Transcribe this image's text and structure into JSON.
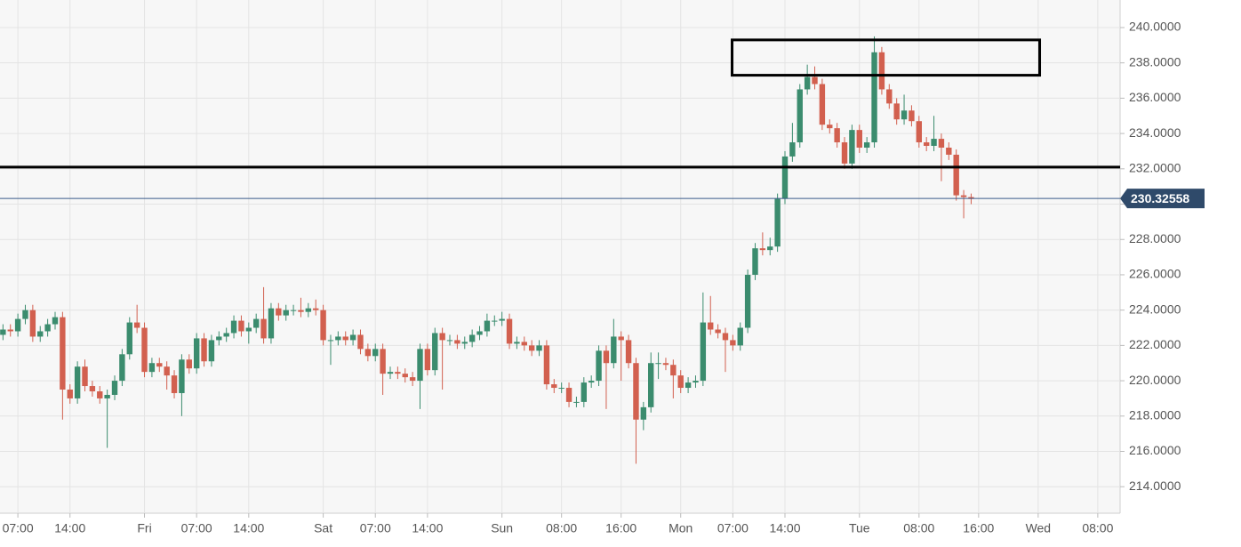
{
  "chart_data": {
    "type": "candlestick",
    "up_color": "#3b8c6e",
    "down_color": "#d2604f",
    "grid": true,
    "xlim": [
      4.6,
      155
    ],
    "ylim": [
      212.5,
      241.56
    ],
    "xticks": [
      {
        "value": 7,
        "label": "07:00"
      },
      {
        "value": 14,
        "label": "14:00"
      },
      {
        "value": 24,
        "label": "Fri"
      },
      {
        "value": 31,
        "label": "07:00"
      },
      {
        "value": 38,
        "label": "14:00"
      },
      {
        "value": 48,
        "label": "Sat"
      },
      {
        "value": 55,
        "label": "07:00"
      },
      {
        "value": 62,
        "label": "14:00"
      },
      {
        "value": 72,
        "label": "Sun"
      },
      {
        "value": 80,
        "label": "08:00"
      },
      {
        "value": 88,
        "label": "16:00"
      },
      {
        "value": 96,
        "label": "Mon"
      },
      {
        "value": 103,
        "label": "07:00"
      },
      {
        "value": 110,
        "label": "14:00"
      },
      {
        "value": 120,
        "label": "Tue"
      },
      {
        "value": 128,
        "label": "08:00"
      },
      {
        "value": 136,
        "label": "16:00"
      },
      {
        "value": 144,
        "label": "Wed"
      },
      {
        "value": 152,
        "label": "08:00"
      }
    ],
    "yticks": [
      {
        "value": 214,
        "label": "214.0000"
      },
      {
        "value": 216,
        "label": "216.0000"
      },
      {
        "value": 218,
        "label": "218.0000"
      },
      {
        "value": 220,
        "label": "220.0000"
      },
      {
        "value": 222,
        "label": "222.0000"
      },
      {
        "value": 224,
        "label": "224.0000"
      },
      {
        "value": 226,
        "label": "226.0000"
      },
      {
        "value": 228,
        "label": "228.0000"
      },
      {
        "value": 230,
        "label": "230.0000"
      },
      {
        "value": 232,
        "label": "232.0000"
      },
      {
        "value": 234,
        "label": "234.0000"
      },
      {
        "value": 236,
        "label": "236.0000"
      },
      {
        "value": 238,
        "label": "238.0000"
      },
      {
        "value": 240,
        "label": "240.0000"
      }
    ],
    "current_price": 230.32558,
    "hline": 232.1,
    "box": {
      "x": [
        102.9,
        144.2
      ],
      "y": [
        237.3,
        239.3
      ]
    },
    "x": [
      5,
      6,
      7,
      8,
      9,
      10,
      11,
      12,
      13,
      14,
      15,
      16,
      17,
      18,
      19,
      20,
      21,
      22,
      23,
      24,
      25,
      26,
      27,
      28,
      29,
      30,
      31,
      32,
      33,
      34,
      35,
      36,
      37,
      38,
      39,
      40,
      41,
      42,
      43,
      44,
      45,
      46,
      47,
      48,
      49,
      50,
      51,
      52,
      53,
      54,
      55,
      56,
      57,
      58,
      59,
      60,
      61,
      62,
      63,
      64,
      65,
      66,
      67,
      68,
      69,
      70,
      71,
      72,
      73,
      74,
      75,
      76,
      77,
      78,
      79,
      80,
      81,
      82,
      83,
      84,
      85,
      86,
      87,
      88,
      89,
      90,
      91,
      92,
      93,
      94,
      95,
      96,
      97,
      98,
      99,
      100,
      101,
      102,
      103,
      104,
      105,
      106,
      107,
      108,
      109,
      110,
      111,
      112,
      113,
      114,
      115,
      116,
      117,
      118,
      119,
      120,
      121,
      122,
      123,
      124,
      125,
      126,
      127,
      128,
      129,
      130,
      131,
      132,
      133,
      134,
      135
    ],
    "open": [
      222.6,
      222.9,
      222.8,
      223.5,
      224.0,
      222.5,
      222.8,
      223.2,
      223.6,
      219.5,
      219.0,
      220.8,
      219.7,
      219.4,
      219.0,
      219.2,
      220.0,
      221.5,
      223.3,
      223.0,
      220.5,
      221.0,
      220.8,
      220.3,
      219.3,
      221.2,
      220.7,
      222.4,
      221.1,
      222.3,
      222.5,
      222.7,
      223.4,
      222.8,
      223.0,
      223.5,
      222.4,
      224.1,
      223.7,
      224.0,
      224.0,
      223.9,
      224.1,
      224.0,
      222.3,
      222.3,
      222.5,
      222.3,
      222.6,
      221.8,
      221.4,
      221.8,
      220.4,
      220.5,
      220.4,
      220.2,
      220.0,
      221.8,
      220.6,
      222.7,
      222.3,
      222.3,
      222.1,
      222.2,
      222.6,
      222.8,
      223.4,
      223.4,
      223.5,
      222.1,
      222.2,
      222.0,
      221.7,
      222.0,
      219.8,
      219.6,
      219.6,
      218.8,
      218.8,
      219.9,
      220.0,
      221.7,
      221.0,
      222.5,
      222.3,
      221.0,
      217.8,
      218.5,
      221.0,
      221.0,
      220.9,
      220.3,
      219.6,
      219.9,
      220.0,
      223.3,
      222.9,
      222.7,
      222.3,
      222.0,
      223.0,
      226.0,
      227.5,
      227.4,
      227.6,
      230.3,
      232.7,
      233.5,
      236.5,
      237.2,
      236.8,
      234.5,
      234.3,
      233.5,
      232.3,
      234.2,
      233.2,
      233.5,
      238.6,
      236.5,
      235.7,
      234.8,
      235.3,
      234.7,
      233.5,
      233.3,
      233.7,
      233.2,
      232.8,
      230.5,
      230.4
    ],
    "high": [
      223.2,
      223.2,
      223.8,
      224.3,
      224.3,
      223.1,
      223.5,
      223.9,
      223.9,
      219.8,
      221.1,
      221.2,
      220.0,
      219.7,
      219.5,
      220.3,
      221.8,
      223.6,
      224.3,
      223.3,
      221.3,
      221.3,
      221.1,
      220.6,
      221.5,
      221.5,
      222.7,
      222.7,
      222.6,
      222.8,
      223.0,
      223.7,
      223.7,
      223.3,
      223.8,
      225.3,
      224.4,
      224.4,
      224.3,
      224.3,
      224.7,
      224.4,
      224.6,
      224.3,
      222.6,
      222.8,
      222.8,
      222.9,
      222.9,
      222.1,
      222.1,
      222.1,
      220.8,
      220.8,
      220.7,
      220.5,
      222.1,
      222.1,
      223.0,
      223.0,
      222.6,
      222.6,
      222.5,
      222.9,
      223.1,
      223.8,
      223.7,
      223.9,
      223.8,
      222.5,
      222.5,
      222.3,
      222.3,
      222.3,
      220.1,
      219.9,
      219.9,
      219.1,
      220.2,
      220.3,
      222.0,
      222.0,
      223.5,
      222.8,
      222.6,
      221.3,
      218.8,
      221.6,
      221.6,
      221.3,
      221.2,
      220.6,
      220.2,
      220.3,
      225.0,
      224.8,
      223.2,
      223.0,
      222.6,
      223.3,
      226.3,
      227.8,
      228.4,
      228.1,
      230.6,
      233.0,
      234.6,
      236.8,
      237.9,
      237.8,
      237.1,
      234.8,
      234.6,
      233.8,
      234.5,
      234.5,
      233.8,
      239.5,
      238.9,
      236.8,
      236.0,
      236.2,
      235.6,
      235.0,
      233.8,
      235.0,
      234.0,
      233.5,
      233.1,
      230.8,
      230.6
    ],
    "low": [
      222.3,
      222.5,
      222.5,
      223.2,
      222.2,
      222.2,
      222.5,
      222.9,
      217.8,
      218.7,
      218.7,
      219.4,
      219.1,
      218.7,
      216.2,
      218.9,
      219.7,
      221.2,
      222.7,
      220.2,
      220.2,
      220.5,
      219.5,
      219.0,
      218.0,
      220.4,
      220.4,
      220.8,
      220.8,
      222.0,
      222.2,
      222.4,
      222.5,
      222.1,
      222.7,
      222.1,
      222.1,
      223.4,
      223.4,
      223.7,
      223.6,
      223.6,
      223.7,
      222.0,
      220.9,
      222.0,
      222.0,
      222.0,
      221.5,
      221.1,
      221.1,
      219.2,
      220.1,
      220.1,
      219.9,
      219.7,
      218.4,
      220.3,
      220.3,
      219.5,
      222.0,
      221.8,
      221.8,
      221.9,
      222.3,
      222.5,
      223.1,
      223.1,
      221.8,
      221.8,
      221.7,
      221.4,
      221.4,
      219.5,
      219.3,
      219.3,
      218.5,
      218.5,
      218.5,
      219.6,
      219.7,
      218.4,
      220.7,
      220.0,
      220.7,
      215.3,
      217.2,
      218.2,
      220.1,
      220.6,
      219.0,
      219.3,
      219.3,
      219.6,
      219.7,
      222.6,
      222.4,
      220.5,
      221.7,
      221.7,
      222.7,
      225.7,
      227.1,
      227.1,
      227.3,
      230.0,
      232.4,
      233.2,
      236.2,
      236.5,
      234.2,
      234.0,
      233.2,
      232.0,
      232.0,
      232.9,
      232.9,
      233.2,
      236.2,
      235.4,
      234.5,
      234.5,
      234.4,
      233.2,
      233.0,
      233.0,
      231.3,
      232.5,
      230.2,
      229.2,
      230.0
    ],
    "close": [
      222.9,
      222.8,
      223.5,
      224.0,
      222.5,
      222.8,
      223.2,
      223.6,
      219.5,
      219.0,
      220.8,
      219.7,
      219.4,
      219.0,
      219.2,
      220.0,
      221.5,
      223.3,
      223.0,
      220.5,
      221.0,
      220.8,
      220.3,
      219.3,
      221.2,
      220.7,
      222.4,
      221.1,
      222.3,
      222.5,
      222.7,
      223.4,
      222.8,
      223.0,
      223.5,
      222.4,
      224.1,
      223.7,
      224.0,
      224.0,
      223.9,
      224.1,
      224.0,
      222.3,
      222.3,
      222.5,
      222.3,
      222.6,
      221.8,
      221.4,
      221.8,
      220.4,
      220.5,
      220.4,
      220.2,
      220.0,
      221.8,
      220.6,
      222.7,
      222.3,
      222.3,
      222.1,
      222.2,
      222.6,
      222.8,
      223.4,
      223.4,
      223.5,
      222.1,
      222.2,
      222.0,
      221.7,
      222.0,
      219.8,
      219.6,
      219.6,
      218.8,
      218.8,
      219.9,
      220.0,
      221.7,
      221.0,
      222.5,
      222.3,
      221.0,
      217.8,
      218.5,
      221.0,
      221.0,
      220.9,
      220.3,
      219.6,
      219.9,
      220.0,
      223.3,
      222.9,
      222.7,
      222.3,
      222.0,
      223.0,
      226.0,
      227.5,
      227.4,
      227.6,
      230.3,
      232.7,
      233.5,
      236.5,
      237.2,
      236.8,
      234.5,
      234.3,
      233.5,
      232.3,
      234.2,
      233.2,
      233.5,
      238.6,
      236.5,
      235.7,
      234.8,
      235.3,
      234.7,
      233.5,
      233.3,
      233.7,
      233.2,
      232.8,
      230.5,
      230.4,
      230.3
    ]
  }
}
